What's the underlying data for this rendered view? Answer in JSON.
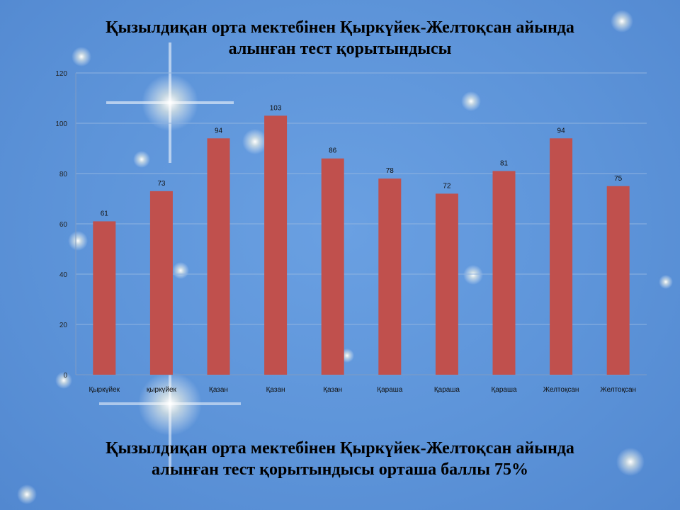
{
  "title": {
    "line1": "Қызылдиқан орта мектебінен Қыркүйек-Желтоқсан айында",
    "line2": "алынған тест қорытындысы"
  },
  "footer": {
    "line1": "Қызылдиқан орта мектебінен Қыркүйек-Желтоқсан айында",
    "line2": "алынған тест  қорытындысы  орташа  баллы  75%"
  },
  "colors": {
    "bar": "#c0504d",
    "gridline": "#8fb3e0",
    "background": "#5b92d8"
  },
  "chart_data": {
    "type": "bar",
    "categories": [
      "Қыркүйек",
      "қыркүйек",
      "Қазан",
      "Қазан",
      "Қазан",
      "Қараша",
      "Қараша",
      "Қараша",
      "Желтоқсан",
      "Желтоқсан"
    ],
    "values": [
      61,
      73,
      94,
      103,
      86,
      78,
      72,
      81,
      94,
      75
    ],
    "ylim": [
      0,
      120
    ],
    "yticks": [
      0,
      20,
      40,
      60,
      80,
      100,
      120
    ],
    "grid": true,
    "data_labels": true,
    "legend": "none"
  }
}
